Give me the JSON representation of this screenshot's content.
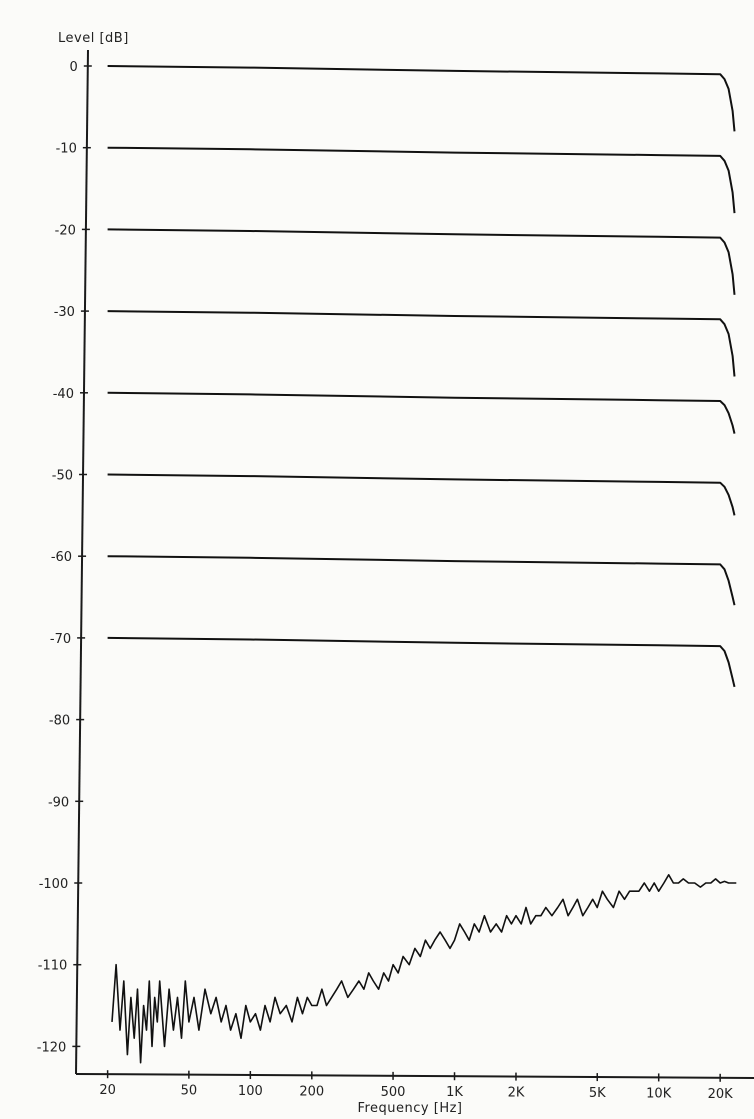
{
  "chart_data": {
    "type": "line",
    "ylabel": "Level [dB]",
    "xlabel": "Frequency [Hz]",
    "x_scale": "log",
    "xlim": [
      14,
      28000
    ],
    "ylim": [
      -125,
      2
    ],
    "grid": false,
    "y_ticks": [
      0,
      -10,
      -20,
      -30,
      -40,
      -50,
      -60,
      -70,
      -80,
      -90,
      -100,
      -110,
      -120
    ],
    "y_tick_labels": [
      "0",
      "-10",
      "-20",
      "-30",
      "-40",
      "-50",
      "-60",
      "-70",
      "-80",
      "-90",
      "-100",
      "-110",
      "-120"
    ],
    "x_ticks": [
      20,
      50,
      100,
      200,
      500,
      1000,
      2000,
      5000,
      10000,
      20000
    ],
    "x_tick_labels": [
      "20",
      "50",
      "100",
      "200",
      "500",
      "1K",
      "2K",
      "5K",
      "10K",
      "20K"
    ],
    "series": [
      {
        "x": [
          20,
          100,
          1000,
          10000,
          20000,
          21000,
          22000,
          23000,
          23500
        ],
        "values": [
          0,
          -0.2,
          -0.6,
          -0.9,
          -1.0,
          -1.6,
          -2.8,
          -5.5,
          -8.0
        ]
      },
      {
        "x": [
          20,
          100,
          1000,
          10000,
          20000,
          21000,
          22000,
          23000,
          23500
        ],
        "values": [
          -10,
          -10.2,
          -10.6,
          -10.9,
          -11.0,
          -11.6,
          -12.8,
          -15.5,
          -18.0
        ]
      },
      {
        "x": [
          20,
          100,
          1000,
          10000,
          20000,
          21000,
          22000,
          23000,
          23500
        ],
        "values": [
          -20,
          -20.2,
          -20.6,
          -20.9,
          -21.0,
          -21.6,
          -22.8,
          -25.5,
          -28.0
        ]
      },
      {
        "x": [
          20,
          100,
          1000,
          10000,
          20000,
          21000,
          22000,
          23000,
          23500
        ],
        "values": [
          -30,
          -30.2,
          -30.6,
          -30.9,
          -31.0,
          -31.6,
          -32.8,
          -35.5,
          -38.0
        ]
      },
      {
        "x": [
          20,
          100,
          1000,
          10000,
          20000,
          21000,
          22000,
          23000,
          23500
        ],
        "values": [
          -40,
          -40.2,
          -40.6,
          -40.9,
          -41.0,
          -41.5,
          -42.5,
          -44.0,
          -45.0
        ]
      },
      {
        "x": [
          20,
          100,
          1000,
          10000,
          20000,
          21000,
          22000,
          23000,
          23500
        ],
        "values": [
          -50,
          -50.2,
          -50.6,
          -50.9,
          -51.0,
          -51.5,
          -52.5,
          -54.0,
          -55.0
        ]
      },
      {
        "x": [
          20,
          100,
          1000,
          10000,
          20000,
          21000,
          22000,
          23000,
          23500
        ],
        "values": [
          -60,
          -60.2,
          -60.6,
          -60.9,
          -61.0,
          -61.6,
          -63.0,
          -65.0,
          -66.0
        ]
      },
      {
        "x": [
          20,
          100,
          1000,
          10000,
          20000,
          21000,
          22000,
          23000,
          23500
        ],
        "values": [
          -70,
          -70.2,
          -70.6,
          -70.9,
          -71.0,
          -71.6,
          -73.0,
          -75.0,
          -76.0
        ]
      },
      {
        "x": [
          21,
          22,
          23,
          24,
          25,
          26,
          27,
          28,
          29,
          30,
          31,
          32,
          33,
          34,
          35,
          36,
          38,
          40,
          42,
          44,
          46,
          48,
          50,
          53,
          56,
          60,
          64,
          68,
          72,
          76,
          80,
          85,
          90,
          95,
          100,
          106,
          112,
          118,
          125,
          132,
          140,
          150,
          160,
          170,
          180,
          190,
          200,
          212,
          224,
          236,
          250,
          265,
          280,
          300,
          320,
          340,
          360,
          380,
          400,
          425,
          450,
          475,
          500,
          530,
          560,
          600,
          640,
          680,
          720,
          760,
          800,
          850,
          900,
          950,
          1000,
          1060,
          1120,
          1180,
          1250,
          1320,
          1400,
          1500,
          1600,
          1700,
          1800,
          1900,
          2000,
          2120,
          2240,
          2360,
          2500,
          2650,
          2800,
          3000,
          3200,
          3400,
          3600,
          3800,
          4000,
          4250,
          4500,
          4750,
          5000,
          5300,
          5600,
          6000,
          6400,
          6800,
          7200,
          7600,
          8000,
          8500,
          9000,
          9500,
          10000,
          10600,
          11200,
          11800,
          12500,
          13200,
          14000,
          15000,
          16000,
          17000,
          18000,
          19000,
          20000,
          21000,
          22000,
          23000,
          24000
        ],
        "values": [
          -117,
          -110,
          -118,
          -112,
          -121,
          -114,
          -119,
          -113,
          -122,
          -115,
          -118,
          -112,
          -120,
          -114,
          -117,
          -112,
          -120,
          -113,
          -118,
          -114,
          -119,
          -112,
          -117,
          -114,
          -118,
          -113,
          -116,
          -114,
          -117,
          -115,
          -118,
          -116,
          -119,
          -115,
          -117,
          -116,
          -118,
          -115,
          -117,
          -114,
          -116,
          -115,
          -117,
          -114,
          -116,
          -114,
          -115,
          -115,
          -113,
          -115,
          -114,
          -113,
          -112,
          -114,
          -113,
          -112,
          -113,
          -111,
          -112,
          -113,
          -111,
          -112,
          -110,
          -111,
          -109,
          -110,
          -108,
          -109,
          -107,
          -108,
          -107,
          -106,
          -107,
          -108,
          -107,
          -105,
          -106,
          -107,
          -105,
          -106,
          -104,
          -106,
          -105,
          -106,
          -104,
          -105,
          -104,
          -105,
          -103,
          -105,
          -104,
          -104,
          -103,
          -104,
          -103,
          -102,
          -104,
          -103,
          -102,
          -104,
          -103,
          -102,
          -103,
          -101,
          -102,
          -103,
          -101,
          -102,
          -101,
          -101,
          -101,
          -100,
          -101,
          -100,
          -101,
          -100,
          -99,
          -100,
          -100,
          -99.5,
          -100,
          -100,
          -100.5,
          -100,
          -100,
          -99.5,
          -100,
          -99.8,
          -100,
          -100,
          -100
        ]
      }
    ]
  }
}
